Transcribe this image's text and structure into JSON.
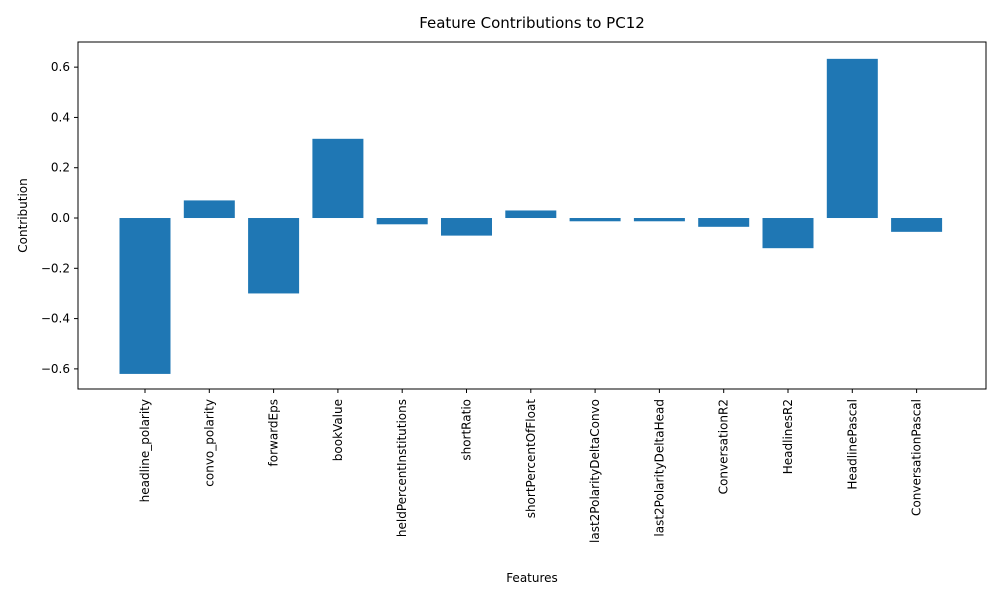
{
  "chart_data": {
    "type": "bar",
    "title": "Feature Contributions to PC12",
    "xlabel": "Features",
    "ylabel": "Contribution",
    "categories": [
      "headline_polarity",
      "convo_polarity",
      "forwardEps",
      "bookValue",
      "heldPercentInstitutions",
      "shortRatio",
      "shortPercentOfFloat",
      "last2PolarityDeltaConvo",
      "last2PolarityDeltaHead",
      "ConversationR2",
      "HeadlinesR2",
      "HeadlinePascal",
      "ConversationPascal"
    ],
    "values": [
      -0.62,
      0.07,
      -0.3,
      0.315,
      -0.025,
      -0.07,
      0.03,
      -0.013,
      -0.013,
      -0.035,
      -0.12,
      0.633,
      -0.055
    ],
    "ylim": [
      -0.68,
      0.7
    ],
    "yticks": [
      -0.6,
      -0.4,
      -0.2,
      0.0,
      0.2,
      0.4,
      0.6
    ],
    "ytick_labels": [
      "−0.6",
      "−0.4",
      "−0.2",
      "0.0",
      "0.2",
      "0.4",
      "0.6"
    ],
    "bar_color": "#1f77b4",
    "grid": false,
    "legend": "none"
  }
}
